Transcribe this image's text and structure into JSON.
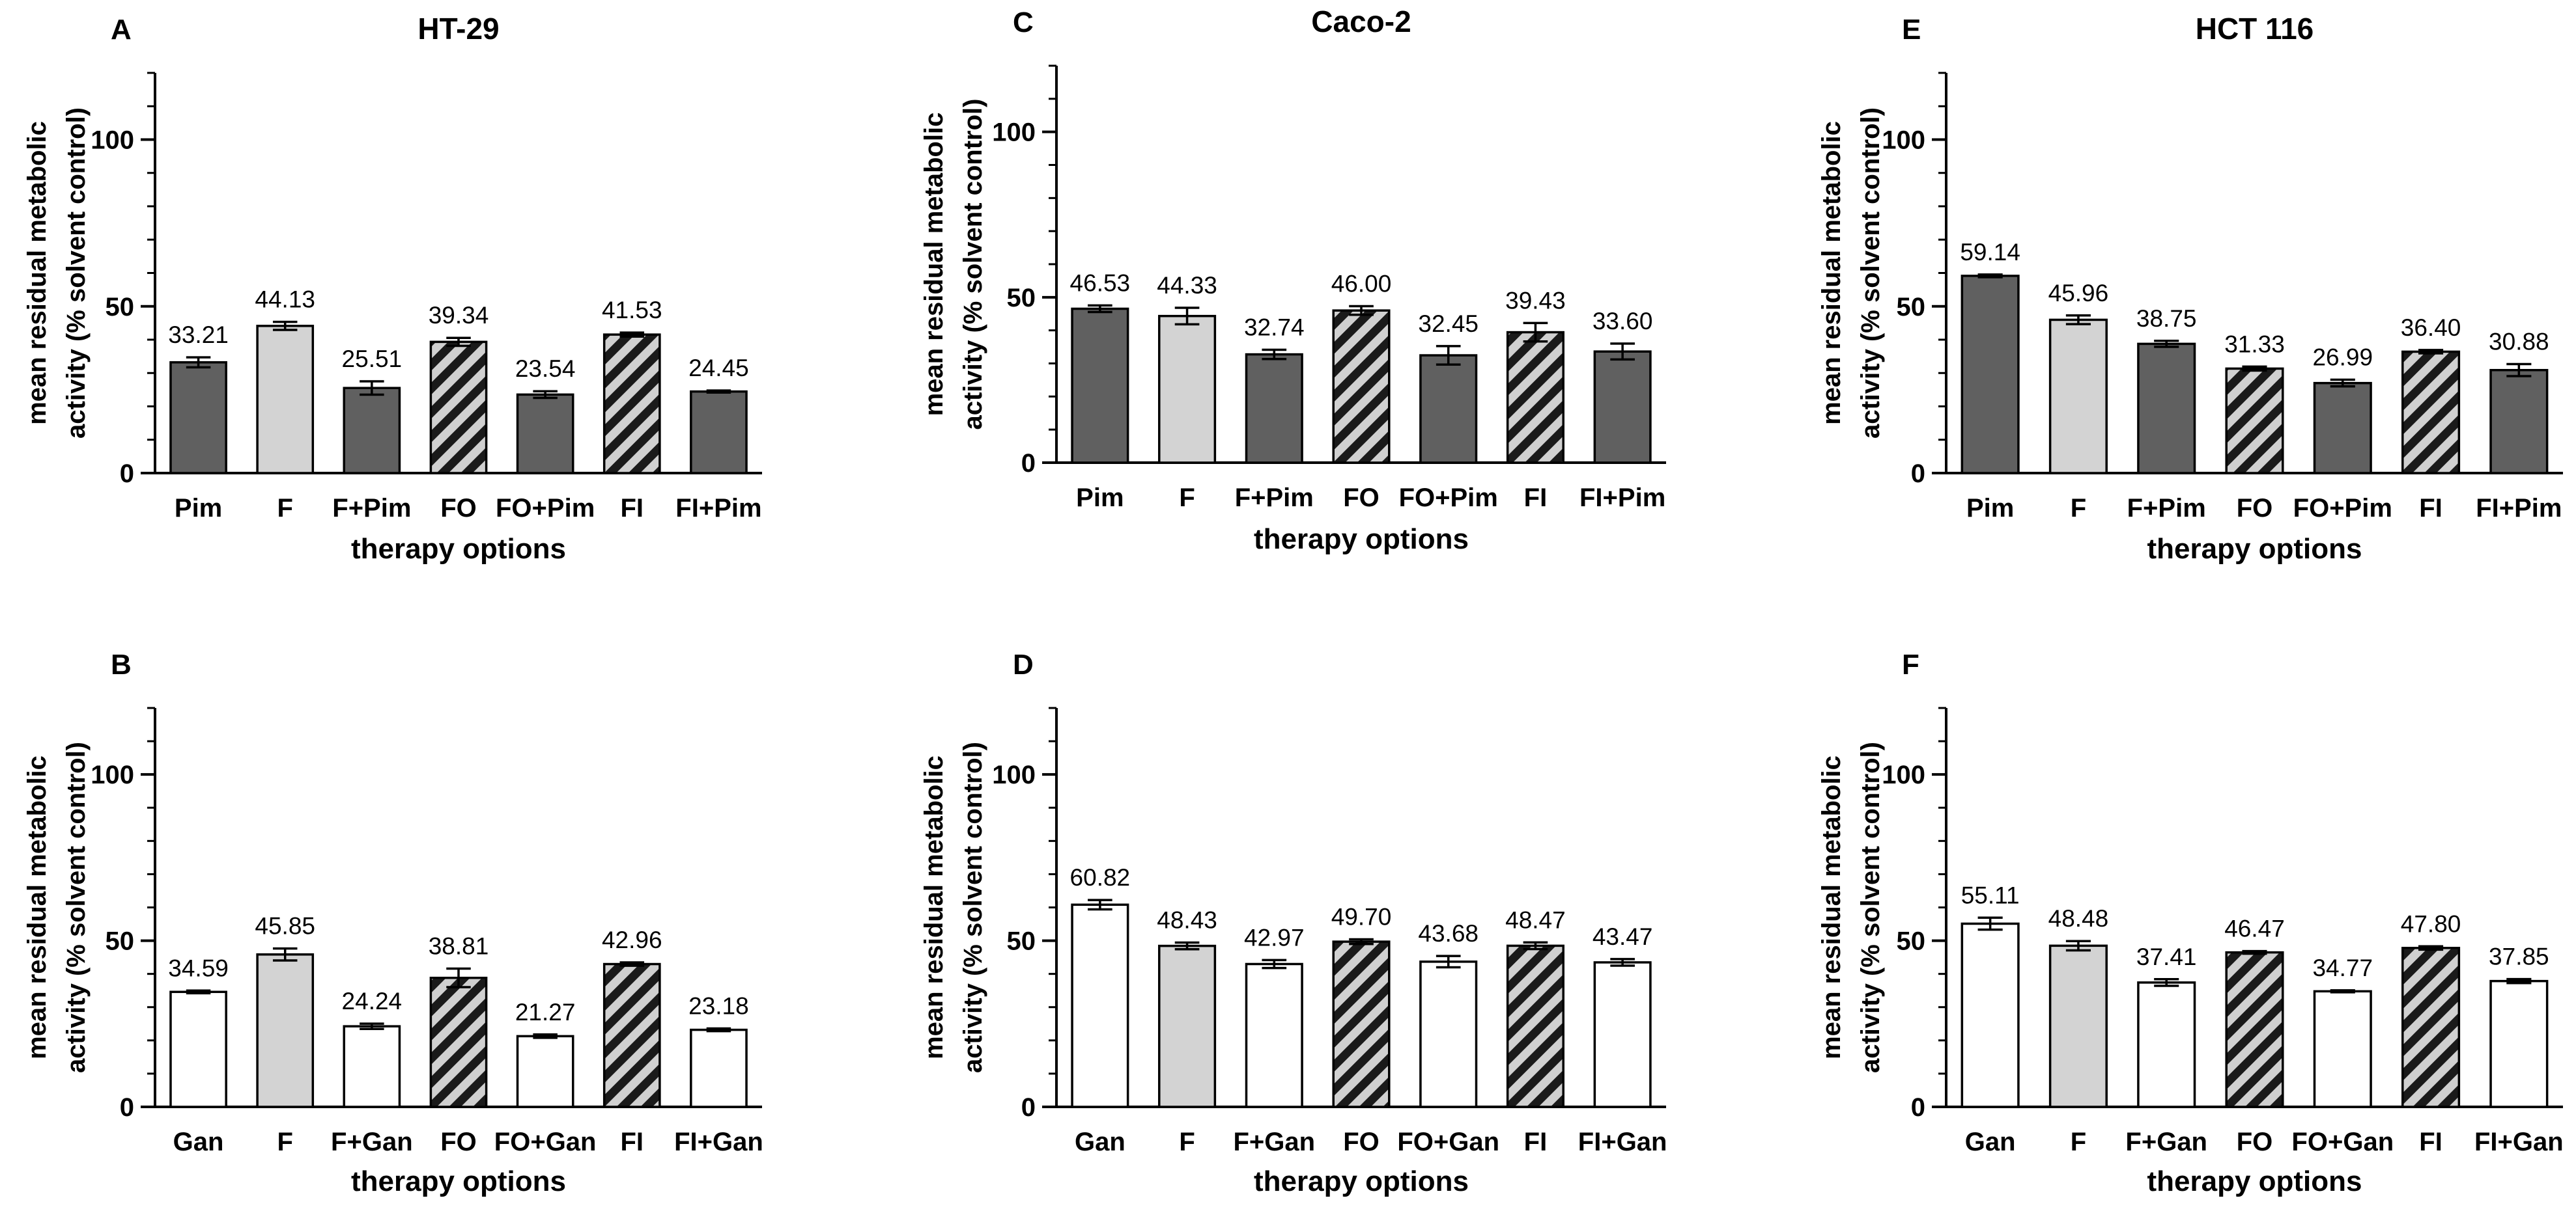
{
  "colors": {
    "dark": "#606060",
    "light": "#d3d3d3",
    "white": "#ffffff",
    "hatch_fg": "#1a1a1a",
    "hatch_bg": "#d0d0d0"
  },
  "chart_data": [
    {
      "panel": "A",
      "type": "bar",
      "title": "HT-29",
      "xlabel": "therapy options",
      "ylabel_lines": [
        "mean residual metabolic",
        "activity (% solvent control)"
      ],
      "ylim": [
        0,
        120
      ],
      "yticks": [
        0,
        50,
        100
      ],
      "categories": [
        "Pim",
        "F",
        "F+Pim",
        "FO",
        "FO+Pim",
        "FI",
        "FI+Pim"
      ],
      "values": [
        33.21,
        44.13,
        25.51,
        39.34,
        23.54,
        41.53,
        24.45
      ],
      "value_labels": [
        "33.21",
        "44.13",
        "25.51",
        "39.34",
        "23.54",
        "41.53",
        "24.45"
      ],
      "errors": [
        1.5,
        1.2,
        2.0,
        1.2,
        1.0,
        0.6,
        0.3
      ],
      "fills": [
        "dark",
        "light",
        "dark",
        "hatch",
        "dark",
        "hatch",
        "dark"
      ]
    },
    {
      "panel": "B",
      "type": "bar",
      "title": "",
      "xlabel": "therapy options",
      "ylabel_lines": [
        "mean residual metabolic",
        "activity (% solvent control)"
      ],
      "ylim": [
        0,
        120
      ],
      "yticks": [
        0,
        50,
        100
      ],
      "categories": [
        "Gan",
        "F",
        "F+Gan",
        "FO",
        "FO+Gan",
        "FI",
        "FI+Gan"
      ],
      "values": [
        34.59,
        45.85,
        24.24,
        38.81,
        21.27,
        42.96,
        23.18
      ],
      "value_labels": [
        "34.59",
        "45.85",
        "24.24",
        "38.81",
        "21.27",
        "42.96",
        "23.18"
      ],
      "errors": [
        0.4,
        1.8,
        0.8,
        2.8,
        0.5,
        0.5,
        0.4
      ],
      "fills": [
        "white",
        "light",
        "white",
        "hatch",
        "white",
        "hatch",
        "white"
      ]
    },
    {
      "panel": "C",
      "type": "bar",
      "title": "Caco-2",
      "xlabel": "therapy options",
      "ylabel_lines": [
        "mean residual metabolic",
        "activity (% solvent control)"
      ],
      "ylim": [
        0,
        120
      ],
      "yticks": [
        0,
        50,
        100
      ],
      "categories": [
        "Pim",
        "F",
        "F+Pim",
        "FO",
        "FO+Pim",
        "FI",
        "FI+Pim"
      ],
      "values": [
        46.53,
        44.33,
        32.74,
        46.0,
        32.45,
        39.43,
        33.6
      ],
      "value_labels": [
        "46.53",
        "44.33",
        "32.74",
        "46.00",
        "32.45",
        "39.43",
        "33.60"
      ],
      "errors": [
        1.0,
        2.5,
        1.4,
        1.3,
        2.8,
        2.8,
        2.4
      ],
      "fills": [
        "dark",
        "light",
        "dark",
        "hatch",
        "dark",
        "hatch",
        "dark"
      ]
    },
    {
      "panel": "D",
      "type": "bar",
      "title": "",
      "xlabel": "therapy options",
      "ylabel_lines": [
        "mean residual metabolic",
        "activity (% solvent control)"
      ],
      "ylim": [
        0,
        120
      ],
      "yticks": [
        0,
        50,
        100
      ],
      "categories": [
        "Gan",
        "F",
        "F+Gan",
        "FO",
        "FO+Gan",
        "FI",
        "FI+Gan"
      ],
      "values": [
        60.82,
        48.43,
        42.97,
        49.7,
        43.68,
        48.47,
        43.47
      ],
      "value_labels": [
        "60.82",
        "48.43",
        "42.97",
        "49.70",
        "43.68",
        "48.47",
        "43.47"
      ],
      "errors": [
        1.4,
        1.0,
        1.2,
        0.7,
        1.7,
        1.0,
        1.0
      ],
      "fills": [
        "white",
        "light",
        "white",
        "hatch",
        "white",
        "hatch",
        "white"
      ]
    },
    {
      "panel": "E",
      "type": "bar",
      "title": "HCT 116",
      "xlabel": "therapy options",
      "ylabel_lines": [
        "mean residual metabolic",
        "activity (% solvent control)"
      ],
      "ylim": [
        0,
        120
      ],
      "yticks": [
        0,
        50,
        100
      ],
      "categories": [
        "Pim",
        "F",
        "F+Pim",
        "FO",
        "FO+Pim",
        "FI",
        "FI+Pim"
      ],
      "values": [
        59.14,
        45.96,
        38.75,
        31.33,
        26.99,
        36.4,
        30.88
      ],
      "value_labels": [
        "59.14",
        "45.96",
        "38.75",
        "31.33",
        "26.99",
        "36.40",
        "30.88"
      ],
      "errors": [
        0.4,
        1.3,
        0.9,
        0.6,
        1.0,
        0.5,
        1.8
      ],
      "fills": [
        "dark",
        "light",
        "dark",
        "hatch",
        "dark",
        "hatch",
        "dark"
      ]
    },
    {
      "panel": "F",
      "type": "bar",
      "title": "",
      "xlabel": "therapy options",
      "ylabel_lines": [
        "mean residual metabolic",
        "activity (% solvent control)"
      ],
      "ylim": [
        0,
        120
      ],
      "yticks": [
        0,
        50,
        100
      ],
      "categories": [
        "Gan",
        "F",
        "F+Gan",
        "FO",
        "FO+Gan",
        "FI",
        "FI+Gan"
      ],
      "values": [
        55.11,
        48.48,
        37.41,
        46.47,
        34.77,
        47.8,
        37.85
      ],
      "value_labels": [
        "55.11",
        "48.48",
        "37.41",
        "46.47",
        "34.77",
        "47.80",
        "37.85"
      ],
      "errors": [
        1.8,
        1.4,
        1.0,
        0.4,
        0.3,
        0.5,
        0.6
      ],
      "fills": [
        "white",
        "light",
        "white",
        "hatch",
        "white",
        "hatch",
        "white"
      ]
    }
  ]
}
